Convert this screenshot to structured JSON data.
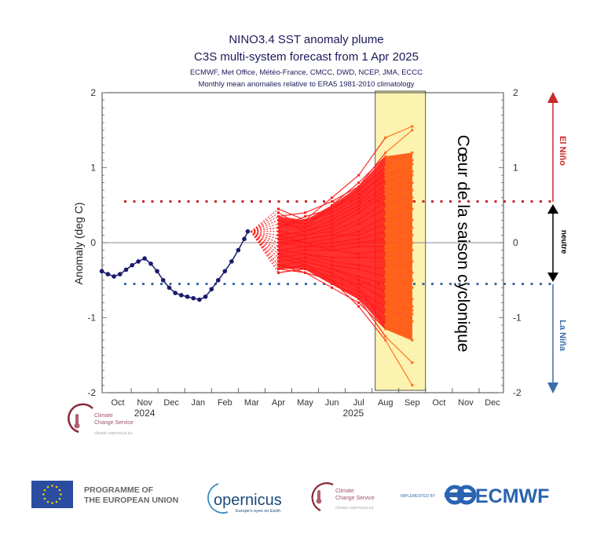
{
  "chart_data": {
    "type": "line",
    "title": "NINO3.4 SST anomaly plume",
    "subtitle": "C3S multi-system forecast from 1 Apr 2025",
    "contributors": "ECMWF, Met Office, Météo-France, CMCC, DWD, NCEP, JMA, ECCC",
    "note": "Monthly mean anomalies relative to ERA5 1981-2010 climatology",
    "ylabel": "Anomaly (deg C)",
    "ylim": [
      -2,
      2
    ],
    "xlim": [
      "2024-09-27",
      "2025-12-31"
    ],
    "yticks": [
      "2",
      "1",
      "0",
      "-1",
      "-2"
    ],
    "ytick_values": [
      2,
      1,
      0,
      -1,
      -2
    ],
    "month_labels": [
      "Oct",
      "Nov",
      "Dec",
      "Jan",
      "Feb",
      "Mar",
      "Apr",
      "May",
      "Jun",
      "Jul",
      "Aug",
      "Sep",
      "Oct",
      "Nov",
      "Dec"
    ],
    "year_labels": [
      "2024",
      "2025"
    ],
    "grid": false,
    "thresholds": {
      "el_nino": 0.55,
      "la_nina": -0.55
    },
    "colors": {
      "observed": "#1a1a6e",
      "forecast": "#ff1a1a",
      "forecast_highlight": "#ff6a1a",
      "el_nino": "#c8282a",
      "la_nina": "#3a6ea8",
      "highlight_box": "#fdf3b0"
    },
    "observed": [
      [
        "2024-09-28",
        -0.38
      ],
      [
        "2024-10-05",
        -0.42
      ],
      [
        "2024-10-12",
        -0.45
      ],
      [
        "2024-10-19",
        -0.42
      ],
      [
        "2024-10-26",
        -0.36
      ],
      [
        "2024-11-02",
        -0.3
      ],
      [
        "2024-11-09",
        -0.25
      ],
      [
        "2024-11-16",
        -0.21
      ],
      [
        "2024-11-23",
        -0.28
      ],
      [
        "2024-11-30",
        -0.38
      ],
      [
        "2024-12-07",
        -0.5
      ],
      [
        "2024-12-14",
        -0.6
      ],
      [
        "2024-12-21",
        -0.67
      ],
      [
        "2024-12-28",
        -0.7
      ],
      [
        "2025-01-04",
        -0.72
      ],
      [
        "2025-01-11",
        -0.74
      ],
      [
        "2025-01-18",
        -0.76
      ],
      [
        "2025-01-25",
        -0.72
      ],
      [
        "2025-02-01",
        -0.62
      ],
      [
        "2025-02-08",
        -0.5
      ],
      [
        "2025-02-15",
        -0.38
      ],
      [
        "2025-02-22",
        -0.25
      ],
      [
        "2025-03-01",
        -0.1
      ],
      [
        "2025-03-08",
        0.05
      ],
      [
        "2025-03-12",
        0.15
      ]
    ],
    "forecast_months": [
      "2025-04",
      "2025-05",
      "2025-06",
      "2025-07",
      "2025-08",
      "2025-09"
    ],
    "forecast_members": [
      [
        0.45,
        0.3,
        0.6,
        0.9,
        1.4,
        1.55
      ],
      [
        0.35,
        0.4,
        0.55,
        0.75,
        1.2,
        1.5
      ],
      [
        0.3,
        0.25,
        0.45,
        0.7,
        1.0,
        1.1
      ],
      [
        0.2,
        0.3,
        0.4,
        0.6,
        0.95,
        1.05
      ],
      [
        0.25,
        0.2,
        0.35,
        0.55,
        0.85,
        0.95
      ],
      [
        0.1,
        0.15,
        0.3,
        0.5,
        0.75,
        0.9
      ],
      [
        0.15,
        0.1,
        0.2,
        0.4,
        0.65,
        0.8
      ],
      [
        0.05,
        0.1,
        0.15,
        0.3,
        0.55,
        0.7
      ],
      [
        0.0,
        0.05,
        0.1,
        0.25,
        0.45,
        0.55
      ],
      [
        0.1,
        0.0,
        0.05,
        0.15,
        0.35,
        0.45
      ],
      [
        -0.05,
        0.05,
        0.1,
        0.1,
        0.25,
        0.3
      ],
      [
        0.0,
        -0.05,
        0.0,
        0.05,
        0.15,
        0.2
      ],
      [
        -0.1,
        -0.05,
        -0.05,
        0.0,
        0.05,
        0.1
      ],
      [
        0.05,
        0.0,
        -0.1,
        -0.05,
        -0.05,
        0.0
      ],
      [
        -0.15,
        -0.1,
        -0.1,
        -0.15,
        -0.1,
        -0.1
      ],
      [
        -0.1,
        -0.15,
        -0.2,
        -0.2,
        -0.2,
        -0.25
      ],
      [
        -0.2,
        -0.15,
        -0.25,
        -0.3,
        -0.35,
        -0.4
      ],
      [
        -0.25,
        -0.2,
        -0.3,
        -0.35,
        -0.45,
        -0.5
      ],
      [
        -0.15,
        -0.25,
        -0.35,
        -0.45,
        -0.55,
        -0.6
      ],
      [
        -0.3,
        -0.25,
        -0.35,
        -0.5,
        -0.65,
        -0.75
      ],
      [
        -0.3,
        -0.35,
        -0.45,
        -0.55,
        -0.75,
        -0.85
      ],
      [
        -0.35,
        -0.3,
        -0.5,
        -0.65,
        -0.85,
        -0.95
      ],
      [
        -0.4,
        -0.35,
        -0.55,
        -0.7,
        -0.95,
        -1.05
      ],
      [
        -0.35,
        -0.4,
        -0.6,
        -0.8,
        -1.15,
        -1.3
      ],
      [
        -0.4,
        -0.35,
        -0.55,
        -0.75,
        -1.25,
        -1.6
      ],
      [
        -0.3,
        -0.4,
        -0.5,
        -0.85,
        -1.3,
        -1.9
      ],
      [
        0.4,
        0.2,
        0.5,
        0.8,
        1.15,
        0.95
      ],
      [
        0.2,
        0.35,
        0.45,
        0.65,
        0.9,
        1.2
      ],
      [
        -0.2,
        -0.3,
        -0.4,
        -0.6,
        -1.1,
        -0.9
      ],
      [
        0.3,
        0.15,
        0.25,
        0.45,
        0.7,
        0.6
      ]
    ],
    "highlight_period": [
      "2025-08-01",
      "2025-09-30"
    ],
    "annotations": {
      "highlight": "Cœur de la saison cyclonique",
      "el_nino": "El Niño",
      "neutral": "neutre",
      "la_nina": "La Niña"
    }
  },
  "logos": {
    "c3s_small": {
      "line1": "Climate",
      "line2": "Change Service",
      "url": "climate.copernicus.eu"
    },
    "eu": "PROGRAMME OF THE EUROPEAN UNION",
    "eu_line1": "PROGRAMME OF",
    "eu_line2": "THE EUROPEAN UNION",
    "copernicus": "opernicus",
    "copernicus_tagline": "Europe's eyes on Earth",
    "c3s": {
      "line1": "Climate",
      "line2": "Change Service",
      "url": "climate.copernicus.eu"
    },
    "implemented_by": "IMPLEMENTED BY",
    "ecmwf": "ECMWF"
  }
}
